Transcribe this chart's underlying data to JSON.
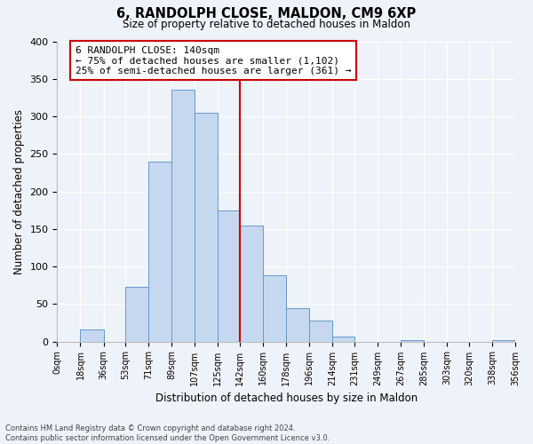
{
  "title": "6, RANDOLPH CLOSE, MALDON, CM9 6XP",
  "subtitle": "Size of property relative to detached houses in Maldon",
  "xlabel": "Distribution of detached houses by size in Maldon",
  "ylabel": "Number of detached properties",
  "bar_color": "#c5d8f0",
  "bar_edge_color": "#6699cc",
  "vline_x": 142,
  "vline_color": "#cc0000",
  "bin_edges": [
    0,
    18,
    36,
    53,
    71,
    89,
    107,
    125,
    142,
    160,
    178,
    196,
    214,
    231,
    249,
    267,
    285,
    303,
    320,
    338,
    356
  ],
  "bin_labels": [
    "0sqm",
    "18sqm",
    "36sqm",
    "53sqm",
    "71sqm",
    "89sqm",
    "107sqm",
    "125sqm",
    "142sqm",
    "160sqm",
    "178sqm",
    "196sqm",
    "214sqm",
    "231sqm",
    "249sqm",
    "267sqm",
    "285sqm",
    "303sqm",
    "320sqm",
    "338sqm",
    "356sqm"
  ],
  "counts": [
    0,
    16,
    0,
    73,
    240,
    335,
    305,
    175,
    155,
    88,
    45,
    28,
    7,
    0,
    0,
    2,
    0,
    0,
    0,
    2
  ],
  "ylim": [
    0,
    400
  ],
  "yticks": [
    0,
    50,
    100,
    150,
    200,
    250,
    300,
    350,
    400
  ],
  "annotation_title": "6 RANDOLPH CLOSE: 140sqm",
  "annotation_line1": "← 75% of detached houses are smaller (1,102)",
  "annotation_line2": "25% of semi-detached houses are larger (361) →",
  "annotation_box_color": "#ffffff",
  "annotation_border_color": "#cc0000",
  "footer_line1": "Contains HM Land Registry data © Crown copyright and database right 2024.",
  "footer_line2": "Contains public sector information licensed under the Open Government Licence v3.0.",
  "background_color": "#eef2f9",
  "grid_color": "#ffffff"
}
